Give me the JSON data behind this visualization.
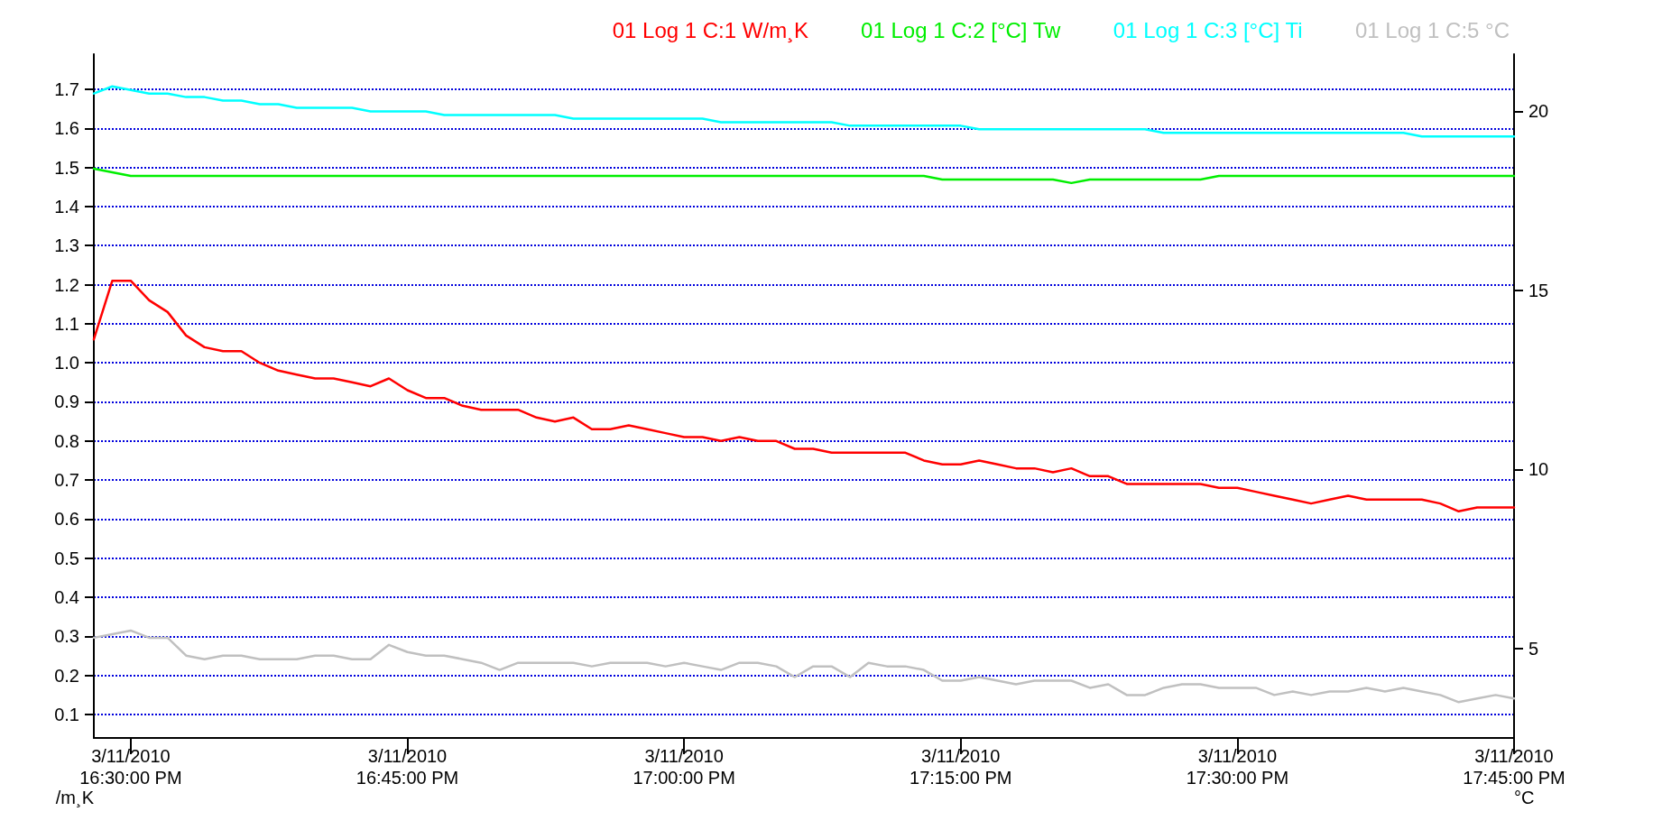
{
  "chart_data": {
    "type": "line",
    "xlabel": null,
    "ylabel": "/m¸K",
    "y2label": "°C",
    "x": [
      "2010-03-11T16:28",
      "2010-03-11T16:29",
      "2010-03-11T16:30",
      "2010-03-11T16:31",
      "2010-03-11T16:32",
      "2010-03-11T16:33",
      "2010-03-11T16:34",
      "2010-03-11T16:35",
      "2010-03-11T16:36",
      "2010-03-11T16:37",
      "2010-03-11T16:38",
      "2010-03-11T16:39",
      "2010-03-11T16:40",
      "2010-03-11T16:41",
      "2010-03-11T16:42",
      "2010-03-11T16:43",
      "2010-03-11T16:44",
      "2010-03-11T16:45",
      "2010-03-11T16:46",
      "2010-03-11T16:47",
      "2010-03-11T16:48",
      "2010-03-11T16:49",
      "2010-03-11T16:50",
      "2010-03-11T16:51",
      "2010-03-11T16:52",
      "2010-03-11T16:53",
      "2010-03-11T16:54",
      "2010-03-11T16:55",
      "2010-03-11T16:56",
      "2010-03-11T16:57",
      "2010-03-11T16:58",
      "2010-03-11T16:59",
      "2010-03-11T17:00",
      "2010-03-11T17:01",
      "2010-03-11T17:02",
      "2010-03-11T17:03",
      "2010-03-11T17:04",
      "2010-03-11T17:05",
      "2010-03-11T17:06",
      "2010-03-11T17:07",
      "2010-03-11T17:08",
      "2010-03-11T17:09",
      "2010-03-11T17:10",
      "2010-03-11T17:11",
      "2010-03-11T17:12",
      "2010-03-11T17:13",
      "2010-03-11T17:14",
      "2010-03-11T17:15",
      "2010-03-11T17:16",
      "2010-03-11T17:17",
      "2010-03-11T17:18",
      "2010-03-11T17:19",
      "2010-03-11T17:20",
      "2010-03-11T17:21",
      "2010-03-11T17:22",
      "2010-03-11T17:23",
      "2010-03-11T17:24",
      "2010-03-11T17:25",
      "2010-03-11T17:26",
      "2010-03-11T17:27",
      "2010-03-11T17:28",
      "2010-03-11T17:29",
      "2010-03-11T17:30",
      "2010-03-11T17:31",
      "2010-03-11T17:32",
      "2010-03-11T17:33",
      "2010-03-11T17:34",
      "2010-03-11T17:35",
      "2010-03-11T17:36",
      "2010-03-11T17:37",
      "2010-03-11T17:38",
      "2010-03-11T17:39",
      "2010-03-11T17:40",
      "2010-03-11T17:41",
      "2010-03-11T17:42",
      "2010-03-11T17:43",
      "2010-03-11T17:44",
      "2010-03-11T17:45"
    ],
    "series": [
      {
        "name": "01 Log 1 C:1 W/m¸K",
        "color": "#ff0000",
        "values": [
          1.06,
          1.21,
          1.21,
          1.16,
          1.13,
          1.07,
          1.04,
          1.03,
          1.03,
          1.0,
          0.98,
          0.97,
          0.96,
          0.96,
          0.95,
          0.94,
          0.96,
          0.93,
          0.91,
          0.91,
          0.89,
          0.88,
          0.88,
          0.88,
          0.86,
          0.85,
          0.86,
          0.83,
          0.83,
          0.84,
          0.83,
          0.82,
          0.81,
          0.81,
          0.8,
          0.81,
          0.8,
          0.8,
          0.78,
          0.78,
          0.77,
          0.77,
          0.77,
          0.77,
          0.77,
          0.75,
          0.74,
          0.74,
          0.75,
          0.74,
          0.73,
          0.73,
          0.72,
          0.73,
          0.71,
          0.71,
          0.69,
          0.69,
          0.69,
          0.69,
          0.69,
          0.68,
          0.68,
          0.67,
          0.66,
          0.65,
          0.64,
          0.65,
          0.66,
          0.65,
          0.65,
          0.65,
          0.65,
          0.64,
          0.62,
          0.63,
          0.63,
          0.63
        ]
      },
      {
        "name": "01 Log 1 C:2 [°C] Tw",
        "color": "#00ee00",
        "axis": "y2",
        "values": [
          18.4,
          18.3,
          18.2,
          18.2,
          18.2,
          18.2,
          18.2,
          18.2,
          18.2,
          18.2,
          18.2,
          18.2,
          18.2,
          18.2,
          18.2,
          18.2,
          18.2,
          18.2,
          18.2,
          18.2,
          18.2,
          18.2,
          18.2,
          18.2,
          18.2,
          18.2,
          18.2,
          18.2,
          18.2,
          18.2,
          18.2,
          18.2,
          18.2,
          18.2,
          18.2,
          18.2,
          18.2,
          18.2,
          18.2,
          18.2,
          18.2,
          18.2,
          18.2,
          18.2,
          18.2,
          18.2,
          18.1,
          18.1,
          18.1,
          18.1,
          18.1,
          18.1,
          18.1,
          18.0,
          18.1,
          18.1,
          18.1,
          18.1,
          18.1,
          18.1,
          18.1,
          18.2,
          18.2,
          18.2,
          18.2,
          18.2,
          18.2,
          18.2,
          18.2,
          18.2,
          18.2,
          18.2,
          18.2,
          18.2,
          18.2,
          18.2,
          18.2,
          18.2
        ]
      },
      {
        "name": "01 Log 1 C:3 [°C] Ti",
        "color": "#00ffff",
        "axis": "y2",
        "values": [
          20.5,
          20.7,
          20.6,
          20.5,
          20.5,
          20.4,
          20.4,
          20.3,
          20.3,
          20.2,
          20.2,
          20.1,
          20.1,
          20.1,
          20.1,
          20.0,
          20.0,
          20.0,
          20.0,
          19.9,
          19.9,
          19.9,
          19.9,
          19.9,
          19.9,
          19.9,
          19.8,
          19.8,
          19.8,
          19.8,
          19.8,
          19.8,
          19.8,
          19.8,
          19.7,
          19.7,
          19.7,
          19.7,
          19.7,
          19.7,
          19.7,
          19.6,
          19.6,
          19.6,
          19.6,
          19.6,
          19.6,
          19.6,
          19.5,
          19.5,
          19.5,
          19.5,
          19.5,
          19.5,
          19.5,
          19.5,
          19.5,
          19.5,
          19.4,
          19.4,
          19.4,
          19.4,
          19.4,
          19.4,
          19.4,
          19.4,
          19.4,
          19.4,
          19.4,
          19.4,
          19.4,
          19.4,
          19.3,
          19.3,
          19.3,
          19.3,
          19.3,
          19.3
        ]
      },
      {
        "name": "01 Log 1 C:5 °C",
        "color": "#c0c0c0",
        "axis": "y2",
        "values": [
          5.3,
          5.4,
          5.5,
          5.3,
          5.3,
          4.8,
          4.7,
          4.8,
          4.8,
          4.7,
          4.7,
          4.7,
          4.8,
          4.8,
          4.7,
          4.7,
          5.1,
          4.9,
          4.8,
          4.8,
          4.7,
          4.6,
          4.4,
          4.6,
          4.6,
          4.6,
          4.6,
          4.5,
          4.6,
          4.6,
          4.6,
          4.5,
          4.6,
          4.5,
          4.4,
          4.6,
          4.6,
          4.5,
          4.2,
          4.5,
          4.5,
          4.2,
          4.6,
          4.5,
          4.5,
          4.4,
          4.1,
          4.1,
          4.2,
          4.1,
          4.0,
          4.1,
          4.1,
          4.1,
          3.9,
          4.0,
          3.7,
          3.7,
          3.9,
          4.0,
          4.0,
          3.9,
          3.9,
          3.9,
          3.7,
          3.8,
          3.7,
          3.8,
          3.8,
          3.9,
          3.8,
          3.9,
          3.8,
          3.7,
          3.5,
          3.6,
          3.7,
          3.6
        ]
      }
    ],
    "xlim": [
      "2010-03-11T16:28",
      "2010-03-11T17:45"
    ],
    "xticks": [
      {
        "value": "2010-03-11T16:30",
        "label": "3/11/2010\n16:30:00 PM"
      },
      {
        "value": "2010-03-11T16:45",
        "label": "3/11/2010\n16:45:00 PM"
      },
      {
        "value": "2010-03-11T17:00",
        "label": "3/11/2010\n17:00:00 PM"
      },
      {
        "value": "2010-03-11T17:15",
        "label": "3/11/2010\n17:15:00 PM"
      },
      {
        "value": "2010-03-11T17:30",
        "label": "3/11/2010\n17:30:00 PM"
      },
      {
        "value": "2010-03-11T17:45",
        "label": "3/11/2010\n17:45:00 PM"
      }
    ],
    "ylim": [
      0.04,
      1.79
    ],
    "yticks": [
      0.1,
      0.2,
      0.3,
      0.4,
      0.5,
      0.6,
      0.7,
      0.8,
      0.9,
      {
        "value": 1,
        "label": "1.0"
      },
      1.1,
      1.2,
      1.3,
      1.4,
      1.5,
      1.6,
      1.7
    ],
    "y2lim": [
      2.5,
      21.6
    ],
    "y2ticks": [
      5,
      10,
      15,
      20
    ],
    "grid": "y",
    "legend": "top right",
    "marker": "none",
    "line_style": "solid"
  }
}
